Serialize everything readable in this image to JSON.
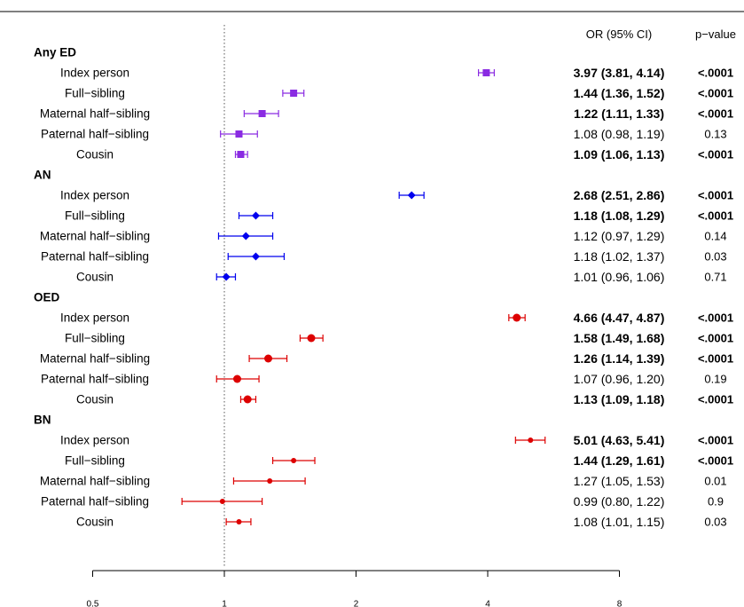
{
  "chart_data": {
    "type": "forest",
    "header": {
      "or_label": "OR (95% CI)",
      "p_label": "p−value"
    },
    "x_scale": "log2",
    "xlim": [
      0.5,
      8
    ],
    "reference_line": 1,
    "x_ticks": [
      {
        "value": 0.5,
        "label": "0.5"
      },
      {
        "value": 1,
        "label": "1"
      },
      {
        "value": 2,
        "label": "2"
      },
      {
        "value": 4,
        "label": "4"
      },
      {
        "value": 8,
        "label": "8"
      }
    ],
    "groups": [
      {
        "name": "Any ED",
        "color": "#8a2be2",
        "marker": "square",
        "rows": [
          {
            "label": "Index person",
            "or": 3.97,
            "lo": 3.81,
            "hi": 4.14,
            "or_text": "3.97 (3.81, 4.14)",
            "p": "<.0001",
            "bold": true
          },
          {
            "label": "Full−sibling",
            "or": 1.44,
            "lo": 1.36,
            "hi": 1.52,
            "or_text": "1.44 (1.36, 1.52)",
            "p": "<.0001",
            "bold": true
          },
          {
            "label": "Maternal half−sibling",
            "or": 1.22,
            "lo": 1.11,
            "hi": 1.33,
            "or_text": "1.22 (1.11, 1.33)",
            "p": "<.0001",
            "bold": true
          },
          {
            "label": "Paternal half−sibling",
            "or": 1.08,
            "lo": 0.98,
            "hi": 1.19,
            "or_text": "1.08 (0.98, 1.19)",
            "p": "0.13",
            "bold": false
          },
          {
            "label": "Cousin",
            "or": 1.09,
            "lo": 1.06,
            "hi": 1.13,
            "or_text": "1.09 (1.06, 1.13)",
            "p": "<.0001",
            "bold": true
          }
        ]
      },
      {
        "name": "AN",
        "color": "#0000ee",
        "marker": "diamond",
        "rows": [
          {
            "label": "Index person",
            "or": 2.68,
            "lo": 2.51,
            "hi": 2.86,
            "or_text": "2.68 (2.51, 2.86)",
            "p": "<.0001",
            "bold": true
          },
          {
            "label": "Full−sibling",
            "or": 1.18,
            "lo": 1.08,
            "hi": 1.29,
            "or_text": "1.18 (1.08, 1.29)",
            "p": "<.0001",
            "bold": true
          },
          {
            "label": "Maternal half−sibling",
            "or": 1.12,
            "lo": 0.97,
            "hi": 1.29,
            "or_text": "1.12 (0.97, 1.29)",
            "p": "0.14",
            "bold": false
          },
          {
            "label": "Paternal half−sibling",
            "or": 1.18,
            "lo": 1.02,
            "hi": 1.37,
            "or_text": "1.18 (1.02, 1.37)",
            "p": "0.03",
            "bold": false
          },
          {
            "label": "Cousin",
            "or": 1.01,
            "lo": 0.96,
            "hi": 1.06,
            "or_text": "1.01 (0.96, 1.06)",
            "p": "0.71",
            "bold": false
          }
        ]
      },
      {
        "name": "OED",
        "color": "#dd0000",
        "marker": "circle-large",
        "rows": [
          {
            "label": "Index person",
            "or": 4.66,
            "lo": 4.47,
            "hi": 4.87,
            "or_text": "4.66 (4.47, 4.87)",
            "p": "<.0001",
            "bold": true
          },
          {
            "label": "Full−sibling",
            "or": 1.58,
            "lo": 1.49,
            "hi": 1.68,
            "or_text": "1.58 (1.49, 1.68)",
            "p": "<.0001",
            "bold": true
          },
          {
            "label": "Maternal half−sibling",
            "or": 1.26,
            "lo": 1.14,
            "hi": 1.39,
            "or_text": "1.26 (1.14, 1.39)",
            "p": "<.0001",
            "bold": true
          },
          {
            "label": "Paternal half−sibling",
            "or": 1.07,
            "lo": 0.96,
            "hi": 1.2,
            "or_text": "1.07 (0.96, 1.20)",
            "p": "0.19",
            "bold": false
          },
          {
            "label": "Cousin",
            "or": 1.13,
            "lo": 1.09,
            "hi": 1.18,
            "or_text": "1.13 (1.09, 1.18)",
            "p": "<.0001",
            "bold": true
          }
        ]
      },
      {
        "name": "BN",
        "color": "#dd0000",
        "marker": "circle-small",
        "rows": [
          {
            "label": "Index person",
            "or": 5.01,
            "lo": 4.63,
            "hi": 5.41,
            "or_text": "5.01 (4.63, 5.41)",
            "p": "<.0001",
            "bold": true
          },
          {
            "label": "Full−sibling",
            "or": 1.44,
            "lo": 1.29,
            "hi": 1.61,
            "or_text": "1.44 (1.29, 1.61)",
            "p": "<.0001",
            "bold": true
          },
          {
            "label": "Maternal half−sibling",
            "or": 1.27,
            "lo": 1.05,
            "hi": 1.53,
            "or_text": "1.27 (1.05, 1.53)",
            "p": "0.01",
            "bold": false
          },
          {
            "label": "Paternal half−sibling",
            "or": 0.99,
            "lo": 0.8,
            "hi": 1.22,
            "or_text": "0.99 (0.80, 1.22)",
            "p": "0.9",
            "bold": false
          },
          {
            "label": "Cousin",
            "or": 1.08,
            "lo": 1.01,
            "hi": 1.15,
            "or_text": "1.08 (1.01, 1.15)",
            "p": "0.03",
            "bold": false
          }
        ]
      }
    ]
  }
}
